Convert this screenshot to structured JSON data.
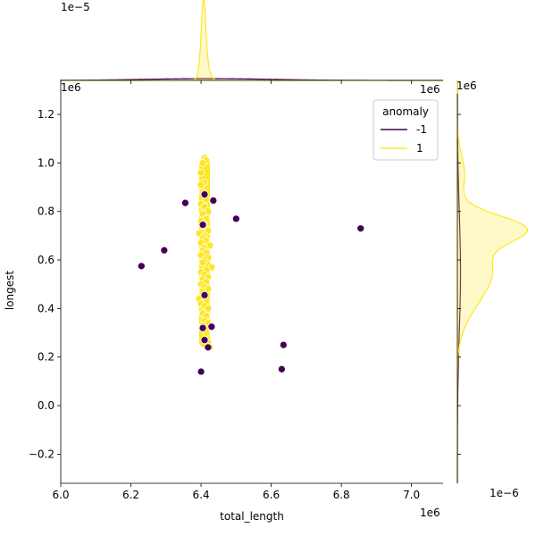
{
  "chart_data": {
    "type": "scatter",
    "xlabel": "total_length",
    "ylabel": "longest",
    "x_offset_label": "1e6",
    "y_offset_label": "1e6",
    "top_marginal_offset_label": "1e−5",
    "right_marginal_offset_label": "1e6",
    "right_marginal_density_offset_label": "1e−6",
    "xlim": [
      6.0,
      7.09
    ],
    "ylim": [
      -0.32,
      1.34
    ],
    "x_ticks": [
      "6.0",
      "6.2",
      "6.4",
      "6.6",
      "6.8",
      "7.0"
    ],
    "y_ticks": [
      "−0.2",
      "0.0",
      "0.2",
      "0.4",
      "0.6",
      "0.8",
      "1.0",
      "1.2"
    ],
    "x_tick_values": [
      6.0,
      6.2,
      6.4,
      6.6,
      6.8,
      7.0
    ],
    "y_tick_values": [
      -0.2,
      0.0,
      0.2,
      0.4,
      0.6,
      0.8,
      1.0,
      1.2
    ],
    "legend": {
      "title": "anomaly",
      "placement": "top-right",
      "entries": [
        {
          "label": "-1",
          "color": "#440154"
        },
        {
          "label": "1",
          "color": "#fde725"
        }
      ]
    },
    "series": [
      {
        "name": "-1",
        "color": "#440154",
        "points": [
          [
            6.23,
            0.575
          ],
          [
            6.295,
            0.64
          ],
          [
            6.355,
            0.835
          ],
          [
            6.41,
            0.87
          ],
          [
            6.435,
            0.845
          ],
          [
            6.5,
            0.77
          ],
          [
            6.405,
            0.745
          ],
          [
            6.855,
            0.73
          ],
          [
            6.41,
            0.455
          ],
          [
            6.405,
            0.32
          ],
          [
            6.43,
            0.325
          ],
          [
            6.41,
            0.27
          ],
          [
            6.42,
            0.24
          ],
          [
            6.635,
            0.25
          ],
          [
            6.63,
            0.15
          ],
          [
            6.4,
            0.14
          ]
        ]
      },
      {
        "name": "1",
        "color": "#fde725",
        "points": [
          [
            6.41,
            1.02
          ],
          [
            6.415,
            1.01
          ],
          [
            6.405,
            1.0
          ],
          [
            6.4,
            0.96
          ],
          [
            6.41,
            0.92
          ],
          [
            6.4,
            0.91
          ],
          [
            6.405,
            0.88
          ],
          [
            6.415,
            0.85
          ],
          [
            6.4,
            0.83
          ],
          [
            6.41,
            0.82
          ],
          [
            6.42,
            0.8
          ],
          [
            6.405,
            0.79
          ],
          [
            6.415,
            0.77
          ],
          [
            6.4,
            0.76
          ],
          [
            6.41,
            0.74
          ],
          [
            6.42,
            0.72
          ],
          [
            6.395,
            0.71
          ],
          [
            6.41,
            0.7
          ],
          [
            6.405,
            0.69
          ],
          [
            6.415,
            0.68
          ],
          [
            6.4,
            0.67
          ],
          [
            6.425,
            0.66
          ],
          [
            6.41,
            0.65
          ],
          [
            6.405,
            0.64
          ],
          [
            6.415,
            0.63
          ],
          [
            6.4,
            0.62
          ],
          [
            6.42,
            0.61
          ],
          [
            6.41,
            0.6
          ],
          [
            6.405,
            0.59
          ],
          [
            6.43,
            0.57
          ],
          [
            6.415,
            0.56
          ],
          [
            6.4,
            0.55
          ],
          [
            6.41,
            0.54
          ],
          [
            6.42,
            0.53
          ],
          [
            6.405,
            0.52
          ],
          [
            6.415,
            0.51
          ],
          [
            6.4,
            0.5
          ],
          [
            6.41,
            0.49
          ],
          [
            6.42,
            0.48
          ],
          [
            6.405,
            0.47
          ],
          [
            6.395,
            0.44
          ],
          [
            6.415,
            0.43
          ],
          [
            6.4,
            0.42
          ],
          [
            6.41,
            0.41
          ],
          [
            6.42,
            0.4
          ],
          [
            6.405,
            0.38
          ],
          [
            6.415,
            0.37
          ],
          [
            6.41,
            0.35
          ],
          [
            6.42,
            0.34
          ],
          [
            6.405,
            0.33
          ],
          [
            6.415,
            0.3
          ],
          [
            6.42,
            0.26
          ],
          [
            6.425,
            0.24
          ]
        ]
      }
    ],
    "marginal_top": {
      "type": "kde",
      "series": [
        {
          "name": "1",
          "peak_x": 6.4,
          "color": "#fde725"
        },
        {
          "name": "-1",
          "peak_x": 6.42,
          "color": "#440154"
        }
      ]
    },
    "marginal_right": {
      "type": "kde",
      "series": [
        {
          "name": "1",
          "peaks_y": [
            0.73,
            0.57
          ],
          "color": "#fde725"
        },
        {
          "name": "-1",
          "peaks_y": [
            0.55
          ],
          "color": "#440154"
        }
      ]
    }
  }
}
